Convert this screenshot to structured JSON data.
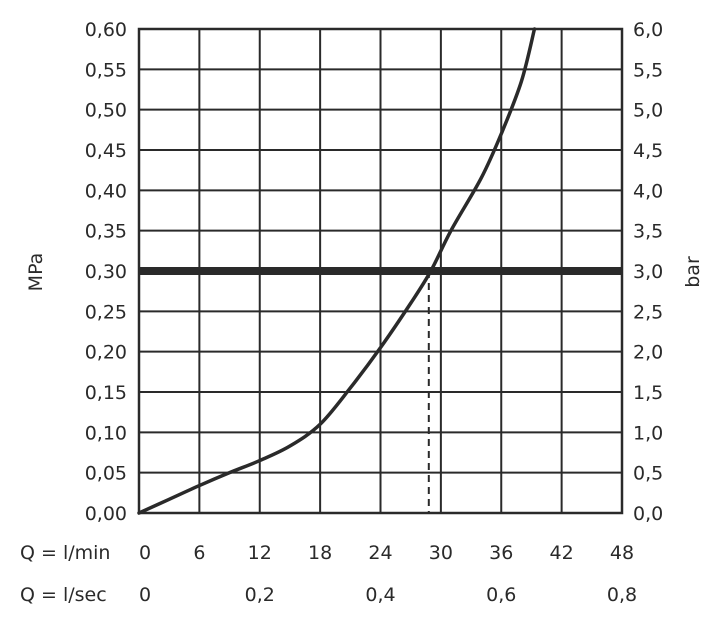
{
  "chart_data": {
    "type": "line",
    "title": "",
    "xlabel_primary": "Q = l/min",
    "xlabel_secondary": "Q = l/sec",
    "ylabel_left": "MPa",
    "ylabel_right": "bar",
    "xlim": [
      0,
      48
    ],
    "ylim": [
      0,
      0.6
    ],
    "grid": true,
    "x_ticks_primary": [
      "0",
      "6",
      "12",
      "18",
      "24",
      "30",
      "36",
      "42",
      "48"
    ],
    "x_ticks_secondary": [
      {
        "x": 0,
        "label": "0"
      },
      {
        "x": 12,
        "label": "0,2"
      },
      {
        "x": 24,
        "label": "0,4"
      },
      {
        "x": 36,
        "label": "0,6"
      },
      {
        "x": 48,
        "label": "0,8"
      }
    ],
    "y_ticks_left": [
      "0,00",
      "0,05",
      "0,10",
      "0,15",
      "0,20",
      "0,25",
      "0,30",
      "0,35",
      "0,40",
      "0,45",
      "0,50",
      "0,55",
      "0,60"
    ],
    "y_ticks_right": [
      "0,0",
      "0,5",
      "1,0",
      "1,5",
      "2,0",
      "2,5",
      "3,0",
      "3,5",
      "4,0",
      "4,5",
      "5,0",
      "5,5",
      "6,0"
    ],
    "series": [
      {
        "x": [
          0,
          3,
          6,
          9,
          12,
          15,
          18,
          21,
          24,
          27,
          29,
          31,
          34,
          36,
          38,
          39.3
        ],
        "y": [
          0,
          0.017,
          0.034,
          0.05,
          0.065,
          0.083,
          0.11,
          0.155,
          0.205,
          0.26,
          0.3,
          0.35,
          0.415,
          0.47,
          0.535,
          0.6
        ]
      }
    ],
    "reference_line": {
      "y": 0.3
    },
    "reference_drop": {
      "x": 28.8,
      "y": 0.3
    }
  }
}
